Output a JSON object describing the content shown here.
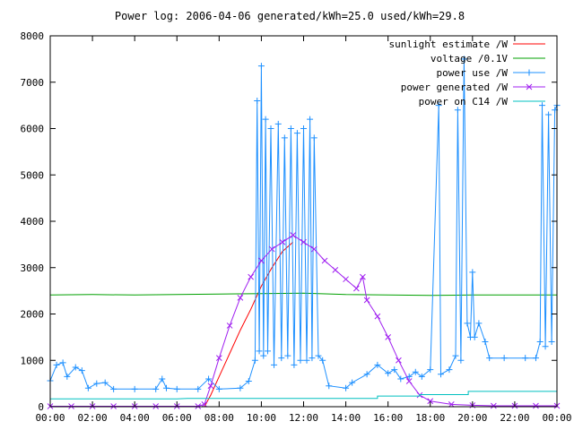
{
  "chart_data": {
    "type": "line",
    "title": "Power log: 2006-04-06 generated/kWh=25.0 used/kWh=29.8",
    "xlabel": "",
    "ylabel": "",
    "xlim": [
      0,
      24
    ],
    "ylim": [
      0,
      8000
    ],
    "x_ticks": [
      "00:00",
      "02:00",
      "04:00",
      "06:00",
      "08:00",
      "10:00",
      "12:00",
      "14:00",
      "16:00",
      "18:00",
      "20:00",
      "22:00",
      "00:00"
    ],
    "y_ticks": [
      0,
      1000,
      2000,
      3000,
      4000,
      5000,
      6000,
      7000,
      8000
    ],
    "grid": false,
    "legend_position": "top-right",
    "series": [
      {
        "name": "sunlight estimate /W",
        "color": "#ff0000",
        "style": "line",
        "points": [
          [
            7.3,
            0
          ],
          [
            7.6,
            250
          ],
          [
            8.0,
            650
          ],
          [
            8.5,
            1150
          ],
          [
            9.0,
            1650
          ],
          [
            9.5,
            2100
          ],
          [
            10.0,
            2600
          ],
          [
            10.5,
            3000
          ],
          [
            11.0,
            3350
          ],
          [
            11.5,
            3550
          ]
        ]
      },
      {
        "name": "voltage /0.1V",
        "color": "#00a000",
        "style": "line",
        "points": [
          [
            0,
            2410
          ],
          [
            2,
            2420
          ],
          [
            4,
            2410
          ],
          [
            6,
            2420
          ],
          [
            8,
            2430
          ],
          [
            10,
            2440
          ],
          [
            12,
            2450
          ],
          [
            14,
            2420
          ],
          [
            16,
            2410
          ],
          [
            18,
            2400
          ],
          [
            20,
            2410
          ],
          [
            22,
            2410
          ],
          [
            24,
            2410
          ]
        ]
      },
      {
        "name": "power use /W",
        "color": "#1e90ff",
        "style": "linespoints",
        "points": [
          [
            0.0,
            560
          ],
          [
            0.3,
            900
          ],
          [
            0.6,
            950
          ],
          [
            0.8,
            650
          ],
          [
            1.2,
            850
          ],
          [
            1.5,
            780
          ],
          [
            1.8,
            400
          ],
          [
            2.2,
            500
          ],
          [
            2.6,
            520
          ],
          [
            3.0,
            380
          ],
          [
            4.0,
            380
          ],
          [
            5.0,
            380
          ],
          [
            5.3,
            600
          ],
          [
            5.5,
            400
          ],
          [
            6.0,
            380
          ],
          [
            7.0,
            380
          ],
          [
            7.5,
            600
          ],
          [
            8.0,
            380
          ],
          [
            9.0,
            400
          ],
          [
            9.4,
            550
          ],
          [
            9.7,
            1000
          ],
          [
            9.8,
            6600
          ],
          [
            9.9,
            1200
          ],
          [
            10.0,
            7350
          ],
          [
            10.1,
            1100
          ],
          [
            10.2,
            6200
          ],
          [
            10.3,
            1200
          ],
          [
            10.45,
            6000
          ],
          [
            10.6,
            900
          ],
          [
            10.8,
            6100
          ],
          [
            10.95,
            1050
          ],
          [
            11.1,
            5800
          ],
          [
            11.25,
            1100
          ],
          [
            11.4,
            6000
          ],
          [
            11.55,
            900
          ],
          [
            11.7,
            5900
          ],
          [
            11.85,
            1000
          ],
          [
            12.0,
            6000
          ],
          [
            12.15,
            1000
          ],
          [
            12.3,
            6200
          ],
          [
            12.4,
            1050
          ],
          [
            12.5,
            5800
          ],
          [
            12.7,
            1100
          ],
          [
            12.9,
            1000
          ],
          [
            13.2,
            450
          ],
          [
            14.0,
            400
          ],
          [
            14.3,
            520
          ],
          [
            15.0,
            700
          ],
          [
            15.5,
            900
          ],
          [
            16.0,
            720
          ],
          [
            16.3,
            800
          ],
          [
            16.6,
            600
          ],
          [
            17.0,
            650
          ],
          [
            17.3,
            750
          ],
          [
            17.6,
            650
          ],
          [
            18.0,
            800
          ],
          [
            18.4,
            6500
          ],
          [
            18.5,
            700
          ],
          [
            18.9,
            800
          ],
          [
            19.2,
            1100
          ],
          [
            19.3,
            6400
          ],
          [
            19.45,
            1000
          ],
          [
            19.6,
            7500
          ],
          [
            19.75,
            1800
          ],
          [
            19.9,
            1500
          ],
          [
            20.0,
            2900
          ],
          [
            20.1,
            1500
          ],
          [
            20.3,
            1800
          ],
          [
            20.6,
            1400
          ],
          [
            20.8,
            1050
          ],
          [
            21.5,
            1050
          ],
          [
            22.5,
            1050
          ],
          [
            23.0,
            1050
          ],
          [
            23.2,
            1400
          ],
          [
            23.3,
            6500
          ],
          [
            23.45,
            1300
          ],
          [
            23.6,
            6300
          ],
          [
            23.75,
            1400
          ],
          [
            23.9,
            6400
          ],
          [
            24.0,
            6500
          ]
        ]
      },
      {
        "name": "power generated /W",
        "color": "#a020f0",
        "style": "linespoints",
        "points": [
          [
            0.0,
            10
          ],
          [
            1.0,
            10
          ],
          [
            2.0,
            10
          ],
          [
            3.0,
            10
          ],
          [
            4.0,
            10
          ],
          [
            5.0,
            10
          ],
          [
            6.0,
            10
          ],
          [
            7.0,
            10
          ],
          [
            7.3,
            50
          ],
          [
            7.6,
            450
          ],
          [
            8.0,
            1050
          ],
          [
            8.5,
            1750
          ],
          [
            9.0,
            2350
          ],
          [
            9.5,
            2800
          ],
          [
            10.0,
            3150
          ],
          [
            10.5,
            3400
          ],
          [
            11.0,
            3550
          ],
          [
            11.5,
            3700
          ],
          [
            12.0,
            3550
          ],
          [
            12.5,
            3400
          ],
          [
            13.0,
            3150
          ],
          [
            13.5,
            2950
          ],
          [
            14.0,
            2750
          ],
          [
            14.5,
            2550
          ],
          [
            14.8,
            2800
          ],
          [
            15.0,
            2300
          ],
          [
            15.5,
            1950
          ],
          [
            16.0,
            1500
          ],
          [
            16.5,
            1000
          ],
          [
            17.0,
            550
          ],
          [
            17.5,
            250
          ],
          [
            18.0,
            120
          ],
          [
            19.0,
            50
          ],
          [
            20.0,
            30
          ],
          [
            21.0,
            20
          ],
          [
            22.0,
            20
          ],
          [
            23.0,
            20
          ],
          [
            24.0,
            20
          ]
        ]
      },
      {
        "name": "power on C14 /W",
        "color": "#00c0c0",
        "style": "line",
        "points": [
          [
            0,
            170
          ],
          [
            6,
            170
          ],
          [
            6.5,
            180
          ],
          [
            15.5,
            180
          ],
          [
            15.5,
            230
          ],
          [
            17.5,
            230
          ],
          [
            17.5,
            260
          ],
          [
            19.8,
            260
          ],
          [
            19.8,
            330
          ],
          [
            24,
            330
          ]
        ]
      }
    ]
  }
}
